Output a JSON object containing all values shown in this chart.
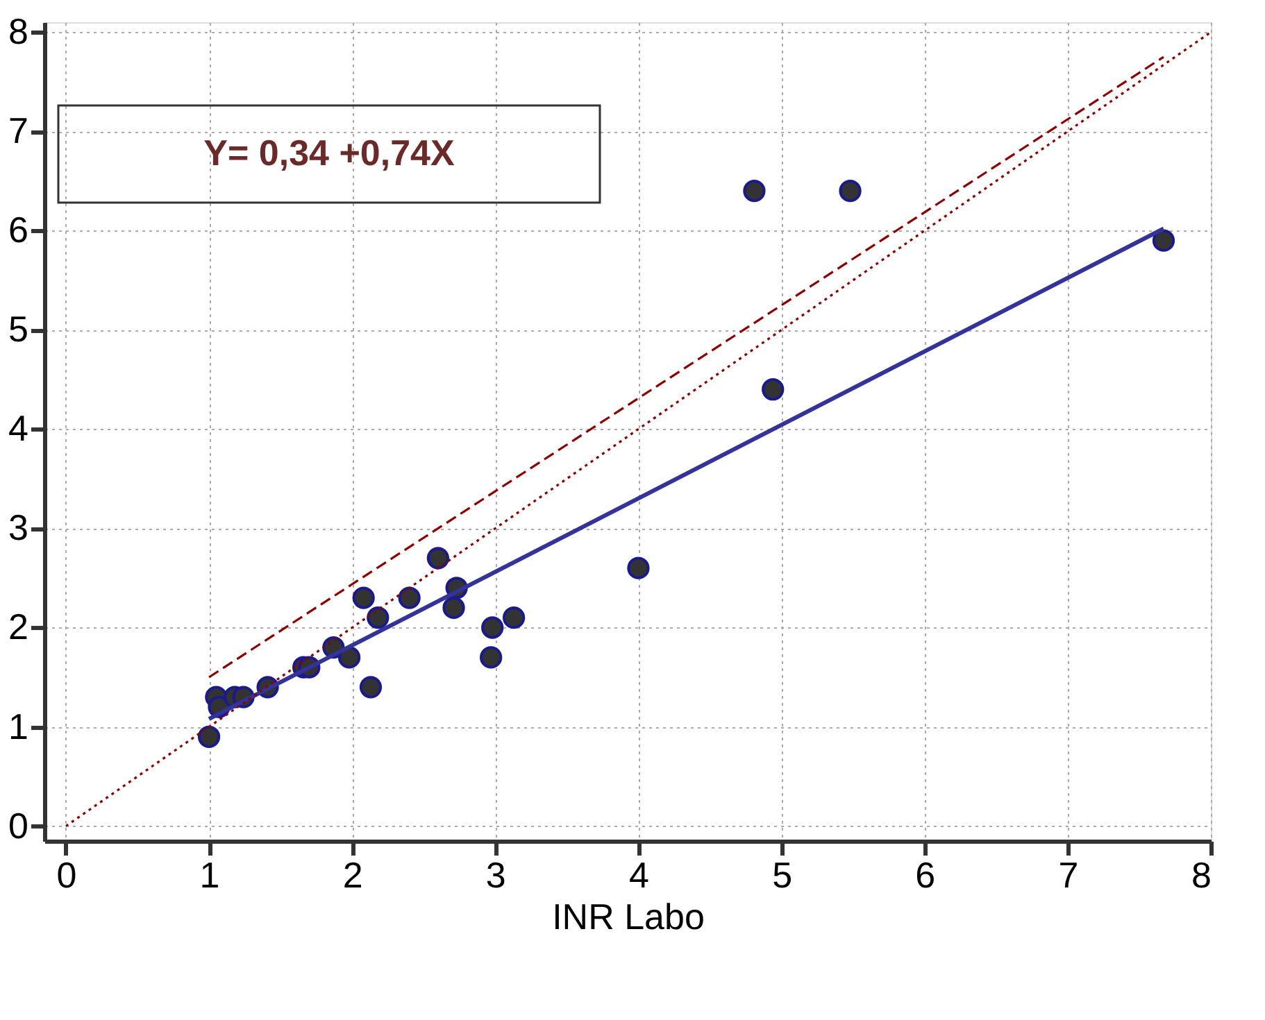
{
  "chart_data": {
    "type": "scatter",
    "xlabel": "INR Labo",
    "xlim": [
      -0.15,
      8
    ],
    "ylim": [
      -0.15,
      8.1
    ],
    "xticks": [
      0,
      1,
      2,
      3,
      4,
      5,
      6,
      7,
      8
    ],
    "yticks": [
      0,
      1,
      2,
      3,
      4,
      5,
      6,
      7,
      8
    ],
    "grid": true,
    "annotations": [
      "Y= 0,34 +0,74X"
    ],
    "series": [
      {
        "color": "#333333",
        "marker": "circle",
        "x": [
          1.0,
          1.05,
          1.07,
          1.18,
          1.24,
          1.41,
          1.66,
          1.7,
          1.87,
          1.98,
          2.08,
          2.13,
          2.18,
          2.4,
          2.6,
          2.71,
          2.73,
          2.97,
          2.98,
          3.13,
          4.0,
          4.81,
          4.94,
          5.48,
          7.67
        ],
        "values": [
          0.9,
          1.3,
          1.2,
          1.3,
          1.3,
          1.4,
          1.6,
          1.6,
          1.8,
          1.7,
          2.3,
          1.4,
          2.1,
          2.3,
          2.7,
          2.2,
          2.4,
          1.7,
          2.0,
          2.1,
          2.6,
          6.4,
          4.4,
          6.4,
          5.9
        ]
      },
      {
        "type": "line",
        "color": "#333399",
        "line_style": "solid",
        "x": [
          1.0,
          7.67
        ],
        "values": [
          1.08,
          6.02
        ]
      },
      {
        "type": "line",
        "color": "#8b0000",
        "line_style": "dotted",
        "x": [
          0,
          8
        ],
        "values": [
          0,
          8
        ]
      },
      {
        "type": "line",
        "color": "#8b0000",
        "line_style": "dashed",
        "x": [
          1.0,
          7.67
        ],
        "values": [
          1.5,
          7.75
        ]
      }
    ]
  }
}
